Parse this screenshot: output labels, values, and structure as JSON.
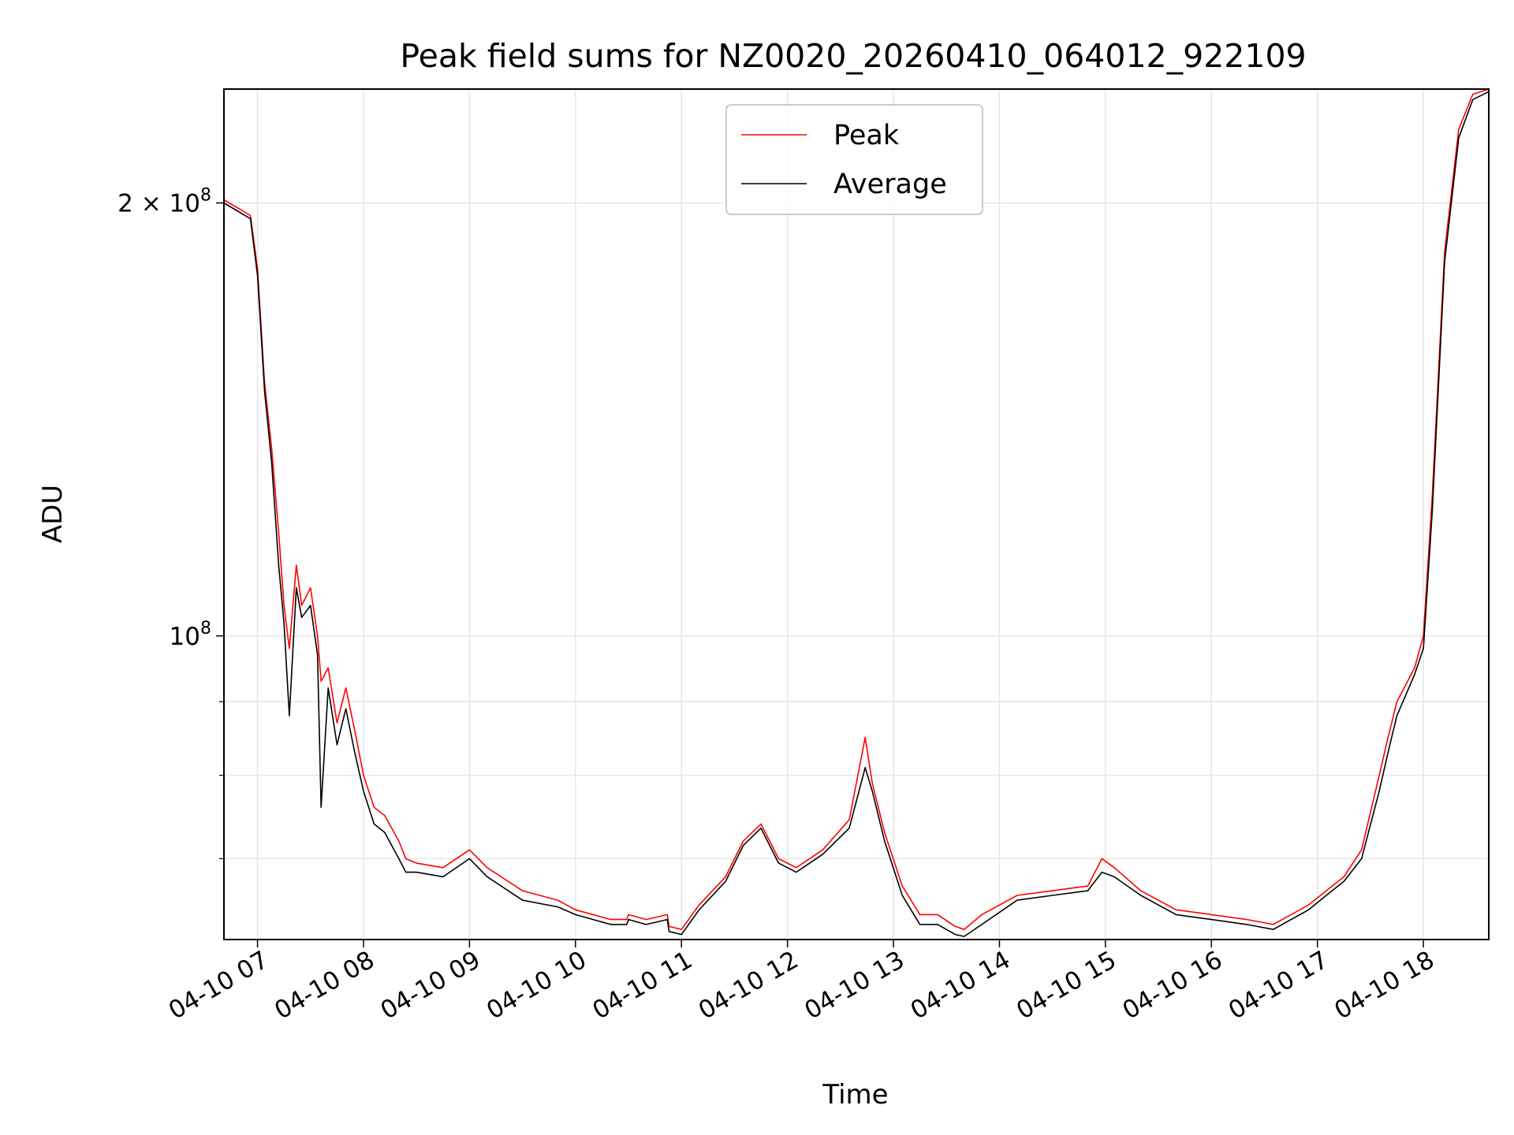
{
  "chart_data": {
    "type": "line",
    "title": "Peak field sums for NZ0020_20260410_064012_922109",
    "xlabel": "Time",
    "ylabel": "ADU",
    "y_scale": "log",
    "xlim": [
      "2026-04-10 06:41",
      "2026-04-10 18:37"
    ],
    "ylim": [
      61500000,
      240000000
    ],
    "x_tick_labels": [
      "04-10 07",
      "04-10 08",
      "04-10 09",
      "04-10 10",
      "04-10 11",
      "04-10 12",
      "04-10 13",
      "04-10 14",
      "04-10 15",
      "04-10 16",
      "04-10 17",
      "04-10 18"
    ],
    "x_tick_times": [
      "2026-04-10 07:00",
      "2026-04-10 08:00",
      "2026-04-10 09:00",
      "2026-04-10 10:00",
      "2026-04-10 11:00",
      "2026-04-10 12:00",
      "2026-04-10 13:00",
      "2026-04-10 14:00",
      "2026-04-10 15:00",
      "2026-04-10 16:00",
      "2026-04-10 17:00",
      "2026-04-10 18:00"
    ],
    "y_ticks": [
      {
        "value": 200000000,
        "label_base": "2 × 10",
        "label_exp": "8"
      },
      {
        "value": 100000000,
        "label_base": "10",
        "label_exp": "8"
      }
    ],
    "y_minor_ticks": [
      60000000,
      70000000,
      80000000,
      90000000
    ],
    "grid": true,
    "legend_position": "top-center",
    "series": [
      {
        "name": "Peak",
        "color": "#ff0000",
        "x": [
          "2026-04-10 06:41",
          "2026-04-10 06:50",
          "2026-04-10 06:56",
          "2026-04-10 07:00",
          "2026-04-10 07:04",
          "2026-04-10 07:08",
          "2026-04-10 07:12",
          "2026-04-10 07:15",
          "2026-04-10 07:18",
          "2026-04-10 07:22",
          "2026-04-10 07:25",
          "2026-04-10 07:30",
          "2026-04-10 07:34",
          "2026-04-10 07:36",
          "2026-04-10 07:40",
          "2026-04-10 07:45",
          "2026-04-10 07:50",
          "2026-04-10 07:55",
          "2026-04-10 08:00",
          "2026-04-10 08:06",
          "2026-04-10 08:12",
          "2026-04-10 08:20",
          "2026-04-10 08:24",
          "2026-04-10 08:30",
          "2026-04-10 08:45",
          "2026-04-10 09:00",
          "2026-04-10 09:10",
          "2026-04-10 09:30",
          "2026-04-10 09:50",
          "2026-04-10 10:00",
          "2026-04-10 10:20",
          "2026-04-10 10:29",
          "2026-04-10 10:30",
          "2026-04-10 10:40",
          "2026-04-10 10:52",
          "2026-04-10 10:53",
          "2026-04-10 11:00",
          "2026-04-10 11:10",
          "2026-04-10 11:25",
          "2026-04-10 11:35",
          "2026-04-10 11:45",
          "2026-04-10 11:55",
          "2026-04-10 12:05",
          "2026-04-10 12:20",
          "2026-04-10 12:35",
          "2026-04-10 12:44",
          "2026-04-10 12:48",
          "2026-04-10 12:55",
          "2026-04-10 13:05",
          "2026-04-10 13:15",
          "2026-04-10 13:25",
          "2026-04-10 13:35",
          "2026-04-10 13:40",
          "2026-04-10 13:50",
          "2026-04-10 14:10",
          "2026-04-10 14:30",
          "2026-04-10 14:50",
          "2026-04-10 14:58",
          "2026-04-10 15:05",
          "2026-04-10 15:20",
          "2026-04-10 15:40",
          "2026-04-10 16:00",
          "2026-04-10 16:20",
          "2026-04-10 16:35",
          "2026-04-10 16:55",
          "2026-04-10 17:05",
          "2026-04-10 17:15",
          "2026-04-10 17:25",
          "2026-04-10 17:35",
          "2026-04-10 17:40",
          "2026-04-10 17:45",
          "2026-04-10 17:55",
          "2026-04-10 18:00",
          "2026-04-10 18:05",
          "2026-04-10 18:12",
          "2026-04-10 18:20",
          "2026-04-10 18:28",
          "2026-04-10 18:37"
        ],
        "y": [
          201000000,
          198000000,
          196000000,
          180000000,
          150000000,
          135000000,
          118000000,
          105000000,
          98000000,
          112000000,
          105000000,
          108000000,
          100000000,
          93000000,
          95000000,
          87000000,
          92000000,
          86000000,
          80000000,
          76000000,
          75000000,
          72000000,
          70000000,
          69500000,
          69000000,
          71000000,
          69000000,
          66500000,
          65500000,
          64500000,
          63500000,
          63500000,
          64000000,
          63500000,
          64000000,
          62800000,
          62500000,
          65000000,
          68000000,
          72000000,
          74000000,
          70000000,
          69000000,
          71000000,
          74500000,
          85000000,
          79000000,
          73000000,
          67000000,
          64000000,
          64000000,
          62800000,
          62500000,
          64000000,
          66000000,
          66500000,
          67000000,
          70000000,
          69000000,
          66500000,
          64500000,
          64000000,
          63500000,
          63000000,
          65000000,
          66500000,
          68000000,
          71000000,
          80000000,
          85000000,
          90000000,
          95000000,
          100000000,
          125000000,
          185000000,
          225000000,
          238000000,
          240000000
        ]
      },
      {
        "name": "Average",
        "color": "#000000",
        "x": [
          "2026-04-10 06:41",
          "2026-04-10 06:50",
          "2026-04-10 06:56",
          "2026-04-10 07:00",
          "2026-04-10 07:04",
          "2026-04-10 07:08",
          "2026-04-10 07:12",
          "2026-04-10 07:15",
          "2026-04-10 07:18",
          "2026-04-10 07:22",
          "2026-04-10 07:25",
          "2026-04-10 07:30",
          "2026-04-10 07:34",
          "2026-04-10 07:36",
          "2026-04-10 07:40",
          "2026-04-10 07:45",
          "2026-04-10 07:50",
          "2026-04-10 07:55",
          "2026-04-10 08:00",
          "2026-04-10 08:06",
          "2026-04-10 08:12",
          "2026-04-10 08:20",
          "2026-04-10 08:24",
          "2026-04-10 08:30",
          "2026-04-10 08:45",
          "2026-04-10 09:00",
          "2026-04-10 09:10",
          "2026-04-10 09:30",
          "2026-04-10 09:50",
          "2026-04-10 10:00",
          "2026-04-10 10:20",
          "2026-04-10 10:29",
          "2026-04-10 10:30",
          "2026-04-10 10:40",
          "2026-04-10 10:52",
          "2026-04-10 10:53",
          "2026-04-10 11:00",
          "2026-04-10 11:10",
          "2026-04-10 11:25",
          "2026-04-10 11:35",
          "2026-04-10 11:45",
          "2026-04-10 11:55",
          "2026-04-10 12:05",
          "2026-04-10 12:20",
          "2026-04-10 12:35",
          "2026-04-10 12:44",
          "2026-04-10 12:48",
          "2026-04-10 12:55",
          "2026-04-10 13:05",
          "2026-04-10 13:15",
          "2026-04-10 13:25",
          "2026-04-10 13:35",
          "2026-04-10 13:40",
          "2026-04-10 13:50",
          "2026-04-10 14:10",
          "2026-04-10 14:30",
          "2026-04-10 14:50",
          "2026-04-10 14:58",
          "2026-04-10 15:05",
          "2026-04-10 15:20",
          "2026-04-10 15:40",
          "2026-04-10 16:00",
          "2026-04-10 16:20",
          "2026-04-10 16:35",
          "2026-04-10 16:55",
          "2026-04-10 17:05",
          "2026-04-10 17:15",
          "2026-04-10 17:25",
          "2026-04-10 17:35",
          "2026-04-10 17:40",
          "2026-04-10 17:45",
          "2026-04-10 17:55",
          "2026-04-10 18:00",
          "2026-04-10 18:05",
          "2026-04-10 18:12",
          "2026-04-10 18:20",
          "2026-04-10 18:28",
          "2026-04-10 18:37"
        ],
        "y": [
          200000000,
          197000000,
          195000000,
          178000000,
          148000000,
          132000000,
          112000000,
          102000000,
          88000000,
          108000000,
          103000000,
          105000000,
          97000000,
          76000000,
          92000000,
          84000000,
          89000000,
          83000000,
          78000000,
          74000000,
          73000000,
          70000000,
          68500000,
          68500000,
          68000000,
          70000000,
          68000000,
          65500000,
          64800000,
          64000000,
          63000000,
          63000000,
          63500000,
          63000000,
          63500000,
          62300000,
          62000000,
          64500000,
          67500000,
          71500000,
          73500000,
          69500000,
          68500000,
          70500000,
          73500000,
          81000000,
          78000000,
          72000000,
          66000000,
          63000000,
          63000000,
          62000000,
          61800000,
          63000000,
          65500000,
          66000000,
          66500000,
          68500000,
          68000000,
          66000000,
          64000000,
          63500000,
          63000000,
          62500000,
          64500000,
          66000000,
          67500000,
          70000000,
          78000000,
          83000000,
          88000000,
          94000000,
          98000000,
          122000000,
          182000000,
          222000000,
          236000000,
          239000000
        ]
      }
    ]
  }
}
